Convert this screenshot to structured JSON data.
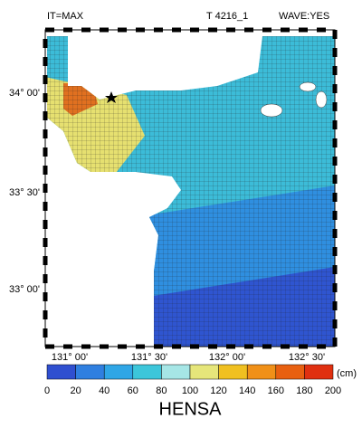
{
  "header": {
    "left": "IT=MAX",
    "case": "T 4216_1",
    "wave": "WAVE:YES"
  },
  "map": {
    "lat_labels": [
      "34° 00'",
      "33° 30'",
      "33° 00'"
    ],
    "lon_labels": [
      "131° 00'",
      "131° 30'",
      "132° 00'",
      "132° 30'"
    ]
  },
  "colorbar": {
    "ticks": [
      0,
      20,
      40,
      60,
      80,
      100,
      120,
      140,
      160,
      180,
      200
    ],
    "colors": [
      "#2f4fd0",
      "#2f7fe0",
      "#2fa6e6",
      "#3cc6da",
      "#a6e6e6",
      "#e6e67a",
      "#f0c020",
      "#f09018",
      "#e86010",
      "#e03010"
    ],
    "unit": "(cm)",
    "label": "HENSA"
  }
}
